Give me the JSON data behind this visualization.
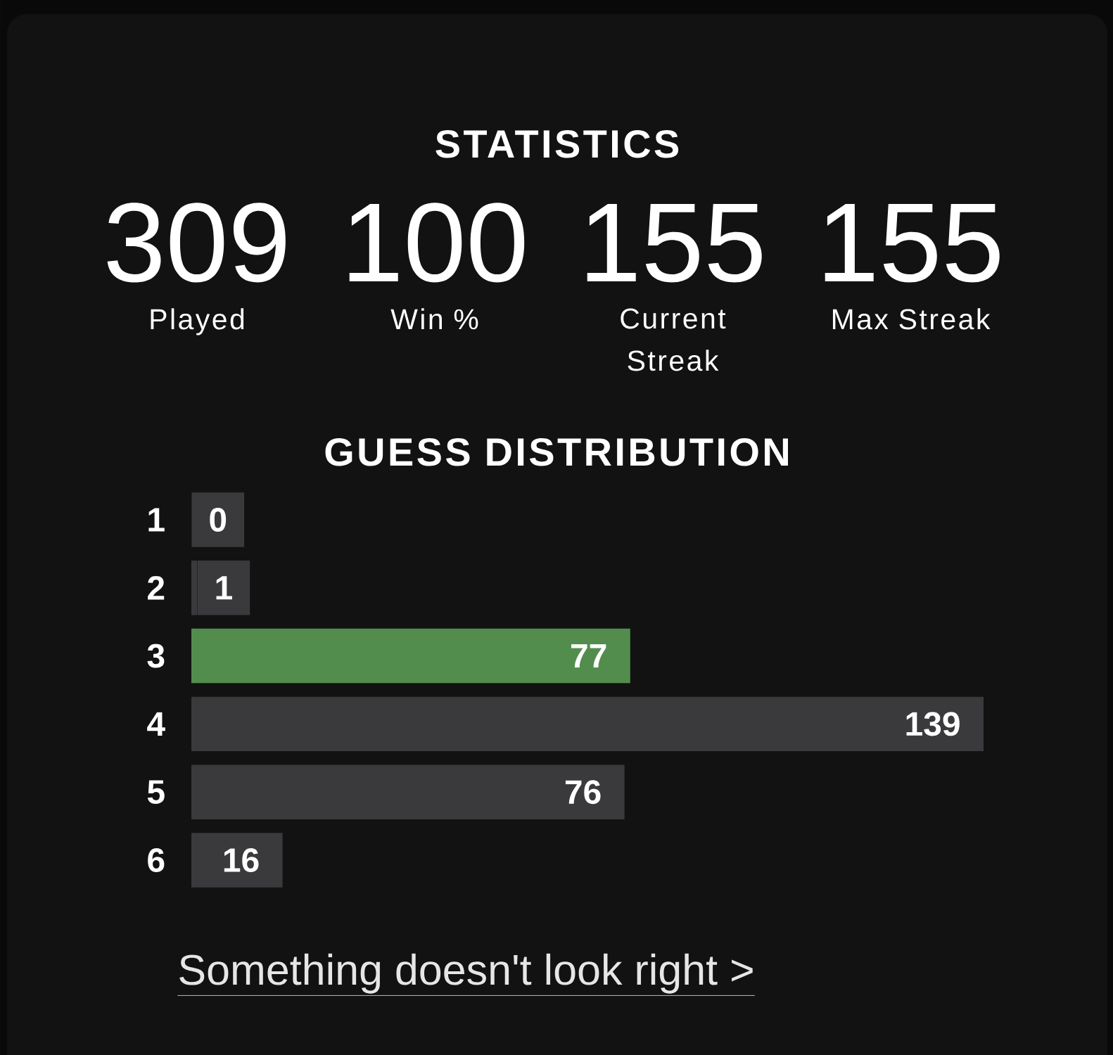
{
  "chart_data": {
    "type": "bar",
    "orientation": "horizontal",
    "title": "GUESS DISTRIBUTION",
    "categories": [
      "1",
      "2",
      "3",
      "4",
      "5",
      "6"
    ],
    "values": [
      0,
      1,
      77,
      139,
      76,
      16
    ],
    "colors": [
      "#3a3a3c",
      "#3a3a3c",
      "#538d4e",
      "#3a3a3c",
      "#3a3a3c",
      "#3a3a3c"
    ],
    "data_labels": true,
    "annotations": [
      "STATISTICS",
      "309",
      "Played",
      "100",
      "Win %",
      "155",
      "Current Streak",
      "155",
      "Max Streak",
      "Something doesn't look right >"
    ]
  }
}
